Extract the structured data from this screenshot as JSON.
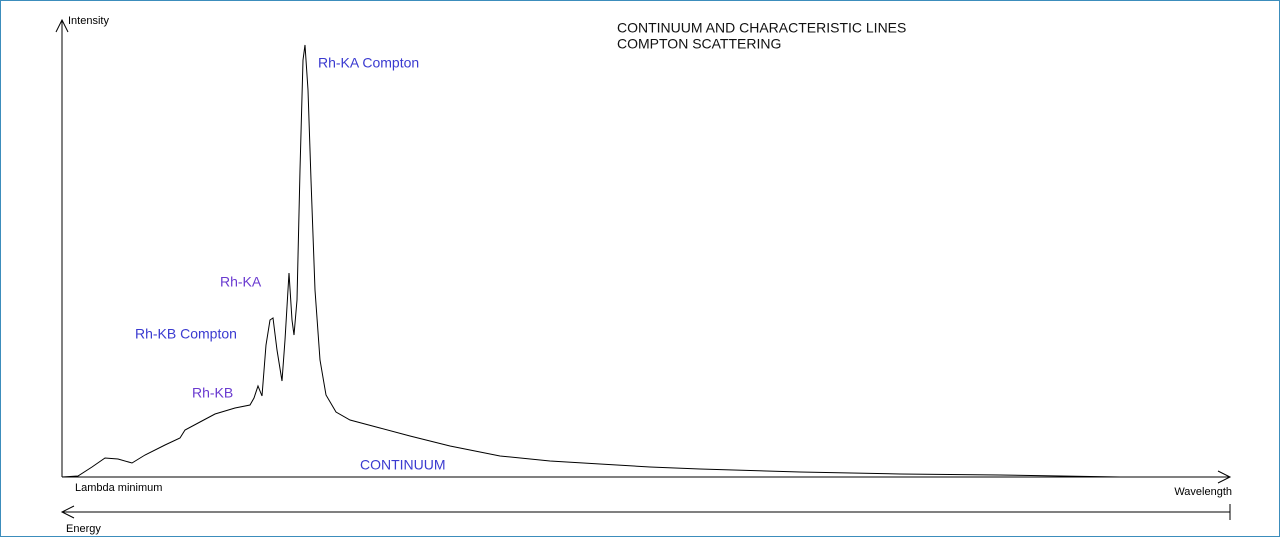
{
  "axes": {
    "y_label": "Intensity",
    "x_label": "Wavelength",
    "x_start": "Lambda minimum",
    "energy_label": "Energy"
  },
  "title": {
    "lines": [
      "CONTINUUM AND CHARACTERISTIC LINES",
      "COMPTON SCATTERING"
    ]
  },
  "labels": [
    {
      "text": "Rh-KA Compton"
    },
    {
      "text": "Rh-KA"
    },
    {
      "text": "Rh-KB Compton"
    },
    {
      "text": "Rh-KB"
    },
    {
      "text": "CONTINUUM"
    }
  ]
}
